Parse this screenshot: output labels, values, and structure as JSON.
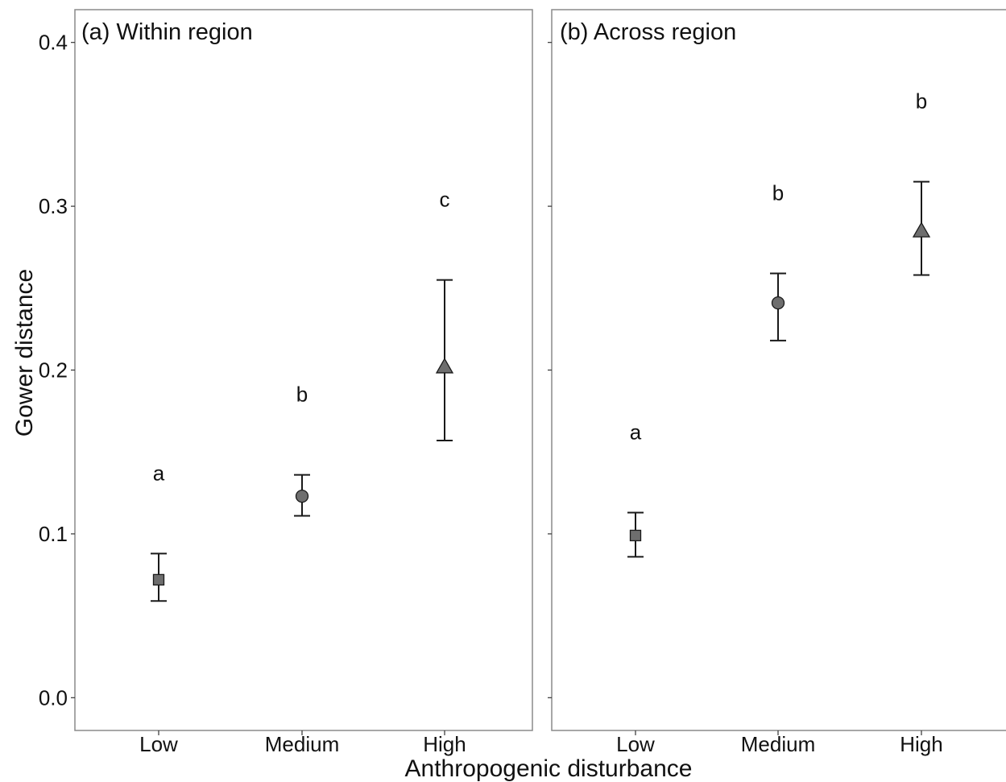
{
  "chart_data": {
    "type": "scatter",
    "xlabel": "Anthropogenic disturbance",
    "ylabel": "Gower distance",
    "categories": [
      "Low",
      "Medium",
      "High"
    ],
    "ylim": [
      -0.02,
      0.42
    ],
    "yticks": [
      "0.0",
      "0.1",
      "0.2",
      "0.3",
      "0.4"
    ],
    "grid": false,
    "marker_color": "#6e6e6e",
    "marker_shapes": [
      "square",
      "circle",
      "triangle"
    ],
    "panels": [
      {
        "title": "(a) Within region",
        "points": [
          {
            "category": "Low",
            "mean": 0.072,
            "lower": 0.059,
            "upper": 0.088,
            "letter": "a"
          },
          {
            "category": "Medium",
            "mean": 0.123,
            "lower": 0.111,
            "upper": 0.136,
            "letter": "b"
          },
          {
            "category": "High",
            "mean": 0.202,
            "lower": 0.157,
            "upper": 0.255,
            "letter": "c"
          }
        ]
      },
      {
        "title": "(b) Across region",
        "points": [
          {
            "category": "Low",
            "mean": 0.099,
            "lower": 0.086,
            "upper": 0.113,
            "letter": "a"
          },
          {
            "category": "Medium",
            "mean": 0.241,
            "lower": 0.218,
            "upper": 0.259,
            "letter": "b"
          },
          {
            "category": "High",
            "mean": 0.285,
            "lower": 0.258,
            "upper": 0.315,
            "letter": "b"
          }
        ]
      }
    ]
  }
}
